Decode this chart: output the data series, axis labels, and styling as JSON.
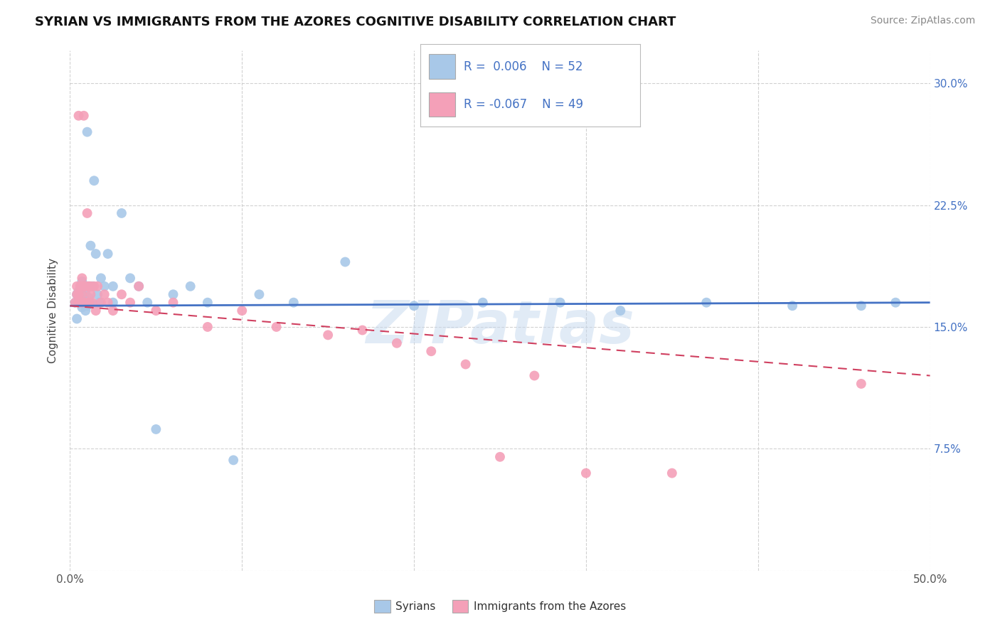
{
  "title": "SYRIAN VS IMMIGRANTS FROM THE AZORES COGNITIVE DISABILITY CORRELATION CHART",
  "source": "Source: ZipAtlas.com",
  "ylabel": "Cognitive Disability",
  "xlim": [
    0.0,
    0.5
  ],
  "ylim": [
    0.0,
    0.32
  ],
  "yticks": [
    0.0,
    0.075,
    0.15,
    0.225,
    0.3
  ],
  "ytick_labels_right": [
    "",
    "7.5%",
    "15.0%",
    "22.5%",
    "30.0%"
  ],
  "xticks": [
    0.0,
    0.1,
    0.2,
    0.3,
    0.4,
    0.5
  ],
  "xtick_labels": [
    "0.0%",
    "",
    "",
    "",
    "",
    "50.0%"
  ],
  "watermark": "ZIPatlas",
  "blue_color": "#a8c8e8",
  "pink_color": "#f4a0b8",
  "line_blue": "#4472c4",
  "line_pink": "#d04060",
  "background_color": "#ffffff",
  "grid_color": "#cccccc",
  "syrians_x": [
    0.003,
    0.004,
    0.004,
    0.005,
    0.005,
    0.006,
    0.006,
    0.007,
    0.007,
    0.007,
    0.008,
    0.008,
    0.008,
    0.009,
    0.009,
    0.01,
    0.01,
    0.01,
    0.011,
    0.011,
    0.012,
    0.012,
    0.013,
    0.014,
    0.015,
    0.016,
    0.017,
    0.018,
    0.02,
    0.022,
    0.025,
    0.025,
    0.03,
    0.035,
    0.04,
    0.045,
    0.05,
    0.06,
    0.07,
    0.08,
    0.095,
    0.11,
    0.13,
    0.16,
    0.2,
    0.24,
    0.285,
    0.32,
    0.37,
    0.42,
    0.46,
    0.48
  ],
  "syrians_y": [
    0.165,
    0.17,
    0.155,
    0.168,
    0.172,
    0.165,
    0.175,
    0.162,
    0.17,
    0.178,
    0.165,
    0.168,
    0.175,
    0.16,
    0.172,
    0.165,
    0.27,
    0.163,
    0.168,
    0.175,
    0.2,
    0.165,
    0.175,
    0.24,
    0.195,
    0.17,
    0.165,
    0.18,
    0.175,
    0.195,
    0.165,
    0.175,
    0.22,
    0.18,
    0.175,
    0.165,
    0.087,
    0.17,
    0.175,
    0.165,
    0.068,
    0.17,
    0.165,
    0.19,
    0.163,
    0.165,
    0.165,
    0.16,
    0.165,
    0.163,
    0.163,
    0.165
  ],
  "azores_x": [
    0.003,
    0.004,
    0.004,
    0.005,
    0.005,
    0.005,
    0.006,
    0.006,
    0.007,
    0.007,
    0.007,
    0.008,
    0.008,
    0.008,
    0.009,
    0.009,
    0.01,
    0.01,
    0.01,
    0.011,
    0.011,
    0.012,
    0.012,
    0.013,
    0.014,
    0.015,
    0.016,
    0.018,
    0.02,
    0.022,
    0.025,
    0.03,
    0.035,
    0.04,
    0.05,
    0.06,
    0.08,
    0.1,
    0.12,
    0.15,
    0.17,
    0.19,
    0.21,
    0.23,
    0.25,
    0.27,
    0.3,
    0.35,
    0.46
  ],
  "azores_y": [
    0.165,
    0.17,
    0.175,
    0.28,
    0.165,
    0.17,
    0.165,
    0.175,
    0.165,
    0.17,
    0.18,
    0.165,
    0.175,
    0.28,
    0.165,
    0.175,
    0.165,
    0.175,
    0.22,
    0.165,
    0.175,
    0.17,
    0.175,
    0.165,
    0.175,
    0.16,
    0.175,
    0.165,
    0.17,
    0.165,
    0.16,
    0.17,
    0.165,
    0.175,
    0.16,
    0.165,
    0.15,
    0.16,
    0.15,
    0.145,
    0.148,
    0.14,
    0.135,
    0.127,
    0.07,
    0.12,
    0.06,
    0.06,
    0.115
  ],
  "blue_trend_x": [
    0.0,
    0.5
  ],
  "blue_trend_y": [
    0.163,
    0.165
  ],
  "pink_trend_x": [
    0.0,
    0.5
  ],
  "pink_trend_y": [
    0.163,
    0.12
  ]
}
